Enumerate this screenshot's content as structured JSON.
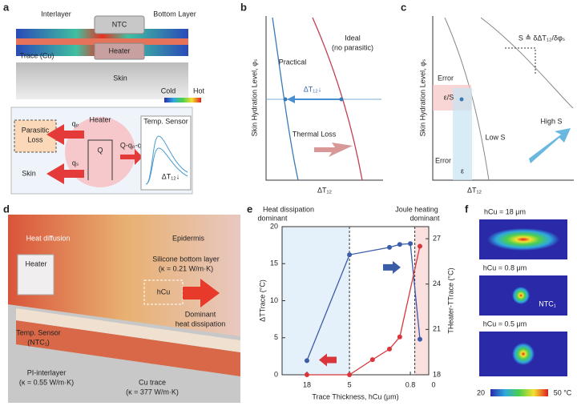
{
  "panels": {
    "a": {
      "label": "a",
      "interlayer": "Interlayer",
      "ntc": "NTC",
      "bottom_layer": "Bottom Layer",
      "trace": "Trace (Cu)",
      "heater": "Heater",
      "skin": "Skin",
      "cold": "Cold",
      "hot": "Hot",
      "parasitic_loss": [
        "Parasitic",
        "Loss"
      ],
      "heater_node": "Heater",
      "temp_sensor": "Temp. Sensor",
      "qp": "qₚ",
      "qs": "qₛ",
      "q": "Q",
      "q_rest": "Q-qₚ-qₛ",
      "skin_node": "Skin",
      "dt": "ΔT₁₂↓"
    },
    "b": {
      "label": "b",
      "ylabel": "Skin Hydration Level, φₛ",
      "ideal": [
        "Ideal",
        "(no parasitic)"
      ],
      "practical": "Practical",
      "dt": "ΔT₁₂↓",
      "thermal_loss": "Thermal Loss",
      "xlabel": "ΔT₁₂"
    },
    "c": {
      "label": "c",
      "ylabel": "Skin Hydration Level, φₛ",
      "def": "S ≜ δΔT₁₂/δφₛ",
      "error_y": "Error",
      "eps_s": "ε/S",
      "low_s": "Low S",
      "high_s": "High S",
      "error_x": "Error",
      "eps": "ε",
      "xlabel": "ΔT₁₂"
    },
    "d": {
      "label": "d",
      "heat_diffusion": "Heat diffusion",
      "epidermis": "Epidermis",
      "silicone": [
        "Silicone bottom layer",
        "(κ = 0.21 W/m·K)"
      ],
      "heater": "Heater",
      "hcu": "hCu",
      "dominant": [
        "Dominant",
        "heat dissipation"
      ],
      "sensor": [
        "Temp. Sensor",
        "(NTC₁)"
      ],
      "pi": [
        "PI-interlayer",
        "(κ = 0.55 W/m·K)"
      ],
      "cu": [
        "Cu trace",
        "(κ = 377 W/m·K)"
      ]
    },
    "e": {
      "label": "e",
      "left_note": [
        "Heat dissipation",
        "dominant"
      ],
      "right_note": [
        "Joule heating",
        "dominant"
      ],
      "x_end_label": "0"
    },
    "f": {
      "label": "f",
      "maps": [
        "hCu = 18 μm",
        "hCu = 0.8 μm",
        "hCu = 0.5 μm"
      ],
      "ntc": "NTC₁",
      "cbar": [
        "20",
        "50 °C"
      ]
    }
  },
  "chart_data": {
    "type": "line",
    "xlabel": "Trace Thickness, hCu (μm)",
    "ylabel": "ΔTTrace (°C)",
    "y2label": "THeater-TTrace (°C)",
    "xscale": "log",
    "xlim": [
      38,
      0.46
    ],
    "xticks": [
      18,
      5,
      0.8
    ],
    "ylim": [
      0,
      20
    ],
    "yticks": [
      0,
      5,
      10,
      15,
      20
    ],
    "y2lim": [
      18,
      27.8
    ],
    "y2ticks": [
      18,
      21,
      24,
      27
    ],
    "dividers": [
      5,
      0.7
    ],
    "series": [
      {
        "color": "#3b5da8",
        "x": [
          18,
          5,
          1.5,
          1.1,
          0.8,
          0.6
        ],
        "values": [
          1.9,
          16.2,
          17.2,
          17.6,
          17.7,
          4.8
        ]
      },
      {
        "color": "#d8363a",
        "axis": "y2",
        "x": [
          18,
          5,
          2.5,
          1.5,
          1.1,
          0.6
        ],
        "values": [
          18,
          18,
          19,
          19.7,
          20.5,
          26.5
        ]
      }
    ]
  }
}
